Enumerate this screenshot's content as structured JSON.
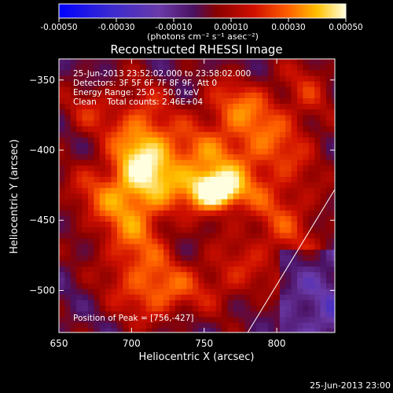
{
  "colorbar": {
    "ticks": [
      "-0.00050",
      "-0.00030",
      "-0.00010",
      "0.00010",
      "0.00030",
      "0.00050"
    ],
    "units": "(photons cm⁻² s⁻¹ asec⁻²)",
    "colors": [
      "#0000ff",
      "#3a2ad0",
      "#6a3aa8",
      "#4a1060",
      "#8a0000",
      "#d01000",
      "#ff6000",
      "#ffc000",
      "#ffffe0"
    ]
  },
  "chart_data": {
    "type": "heatmap",
    "title": "Reconstructed RHESSI Image",
    "xlabel": "Heliocentric X (arcsec)",
    "ylabel": "Heliocentric Y (arcsec)",
    "xlim": [
      650,
      840
    ],
    "ylim": [
      -530,
      -335
    ],
    "xticks": [
      650,
      700,
      750,
      800
    ],
    "yticks": [
      -350,
      -400,
      -450,
      -500
    ],
    "clim": [
      -0.0005,
      0.0005
    ],
    "peak": {
      "x": 756,
      "y": -427
    },
    "limb_line": [
      [
        780,
        -530
      ],
      [
        840,
        -428
      ]
    ],
    "annotations": {
      "time_range": "25-Jun-2013 23:52:02.000 to 23:58:02.000",
      "detectors": "Detectors: 3F 5F 6F 7F 8F 9F, Att 0",
      "energy": "Energy Range: 25.0 - 50.0 keV",
      "clean": "Clean    Total counts: 2.46E+04",
      "peak_text": "Position of Peak = [756,-427]"
    },
    "timestamp": "25-Jun-2013 23:00"
  }
}
